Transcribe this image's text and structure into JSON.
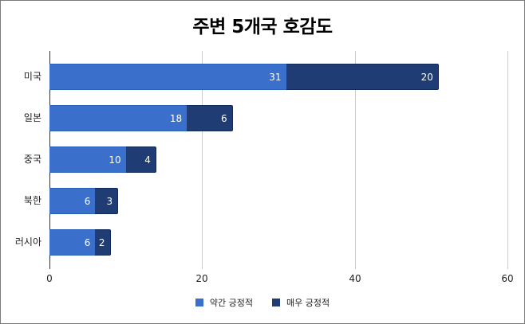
{
  "chart_data": {
    "type": "bar",
    "orientation": "horizontal",
    "stacked": true,
    "title": "주변 5개국 호감도",
    "xlabel": "",
    "ylabel": "",
    "categories": [
      "미국",
      "일본",
      "중국",
      "북한",
      "러시아"
    ],
    "series": [
      {
        "name": "약간 긍정적",
        "color": "#3a70cc",
        "values": [
          31,
          18,
          10,
          6,
          6
        ]
      },
      {
        "name": "매우 긍정적",
        "color": "#1f3c74",
        "values": [
          20,
          6,
          4,
          3,
          2
        ]
      }
    ],
    "xlim": [
      0,
      60
    ],
    "xticks": [
      "0",
      "20",
      "40",
      "60"
    ],
    "grid": true,
    "legend_position": "bottom",
    "data_labels": true
  }
}
